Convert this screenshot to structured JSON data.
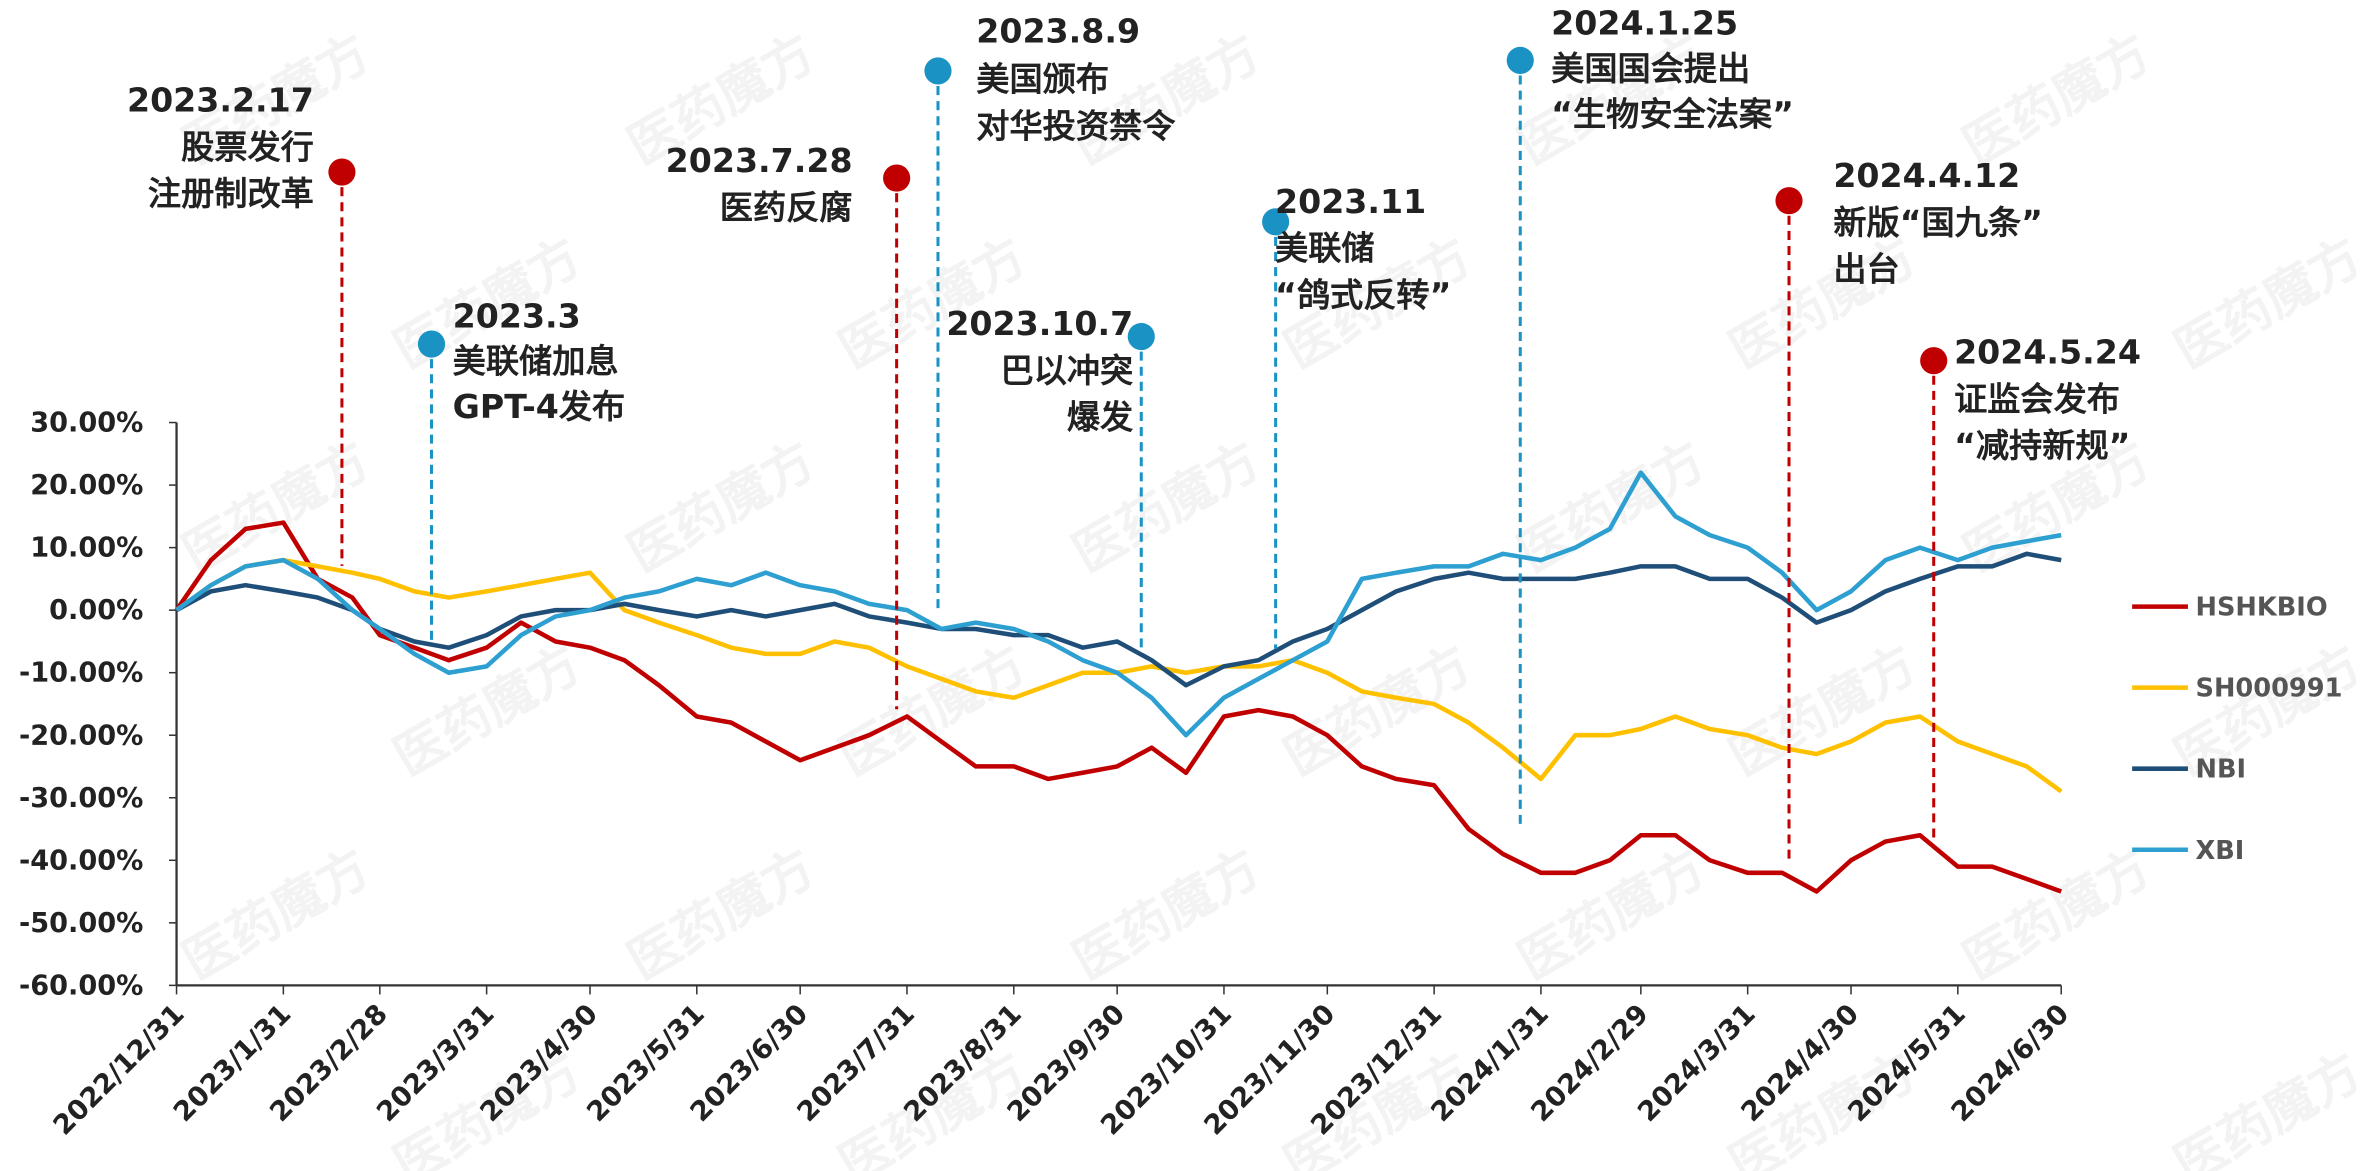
{
  "chart_data": {
    "type": "line",
    "watermark": "医药魔方",
    "x": [
      "2022/12/31",
      "2023/1/10",
      "2023/1/20",
      "2023/1/31",
      "2023/2/10",
      "2023/2/20",
      "2023/2/28",
      "2023/3/10",
      "2023/3/20",
      "2023/3/31",
      "2023/4/10",
      "2023/4/20",
      "2023/4/30",
      "2023/5/10",
      "2023/5/20",
      "2023/5/31",
      "2023/6/10",
      "2023/6/20",
      "2023/6/30",
      "2023/7/10",
      "2023/7/20",
      "2023/7/31",
      "2023/8/10",
      "2023/8/20",
      "2023/8/31",
      "2023/9/10",
      "2023/9/20",
      "2023/9/30",
      "2023/10/10",
      "2023/10/20",
      "2023/10/31",
      "2023/11/10",
      "2023/11/20",
      "2023/11/30",
      "2023/12/10",
      "2023/12/20",
      "2023/12/31",
      "2024/1/10",
      "2024/1/20",
      "2024/1/31",
      "2024/2/10",
      "2024/2/20",
      "2024/2/29",
      "2024/3/10",
      "2024/3/20",
      "2024/3/31",
      "2024/4/10",
      "2024/4/20",
      "2024/4/30",
      "2024/5/10",
      "2024/5/20",
      "2024/5/31",
      "2024/6/10",
      "2024/6/20",
      "2024/6/30"
    ],
    "series": [
      {
        "name": "HSHKBIO",
        "color": "#c00000",
        "values": [
          0,
          8,
          13,
          14,
          5,
          2,
          -4,
          -6,
          -8,
          -6,
          -2,
          -5,
          -6,
          -8,
          -12,
          -17,
          -18,
          -21,
          -24,
          -22,
          -20,
          -17,
          -21,
          -25,
          -25,
          -27,
          -26,
          -25,
          -22,
          -26,
          -17,
          -16,
          -17,
          -20,
          -25,
          -27,
          -28,
          -35,
          -39,
          -42,
          -42,
          -40,
          -36,
          -36,
          -40,
          -42,
          -42,
          -45,
          -40,
          -37,
          -36,
          -41,
          -41,
          -43,
          -45
        ]
      },
      {
        "name": "SH000991",
        "color": "#ffc000",
        "values": [
          0,
          4,
          7,
          8,
          7,
          6,
          5,
          3,
          2,
          3,
          4,
          5,
          6,
          0,
          -2,
          -4,
          -6,
          -7,
          -7,
          -5,
          -6,
          -9,
          -11,
          -13,
          -14,
          -12,
          -10,
          -10,
          -9,
          -10,
          -9,
          -9,
          -8,
          -10,
          -13,
          -14,
          -15,
          -18,
          -22,
          -27,
          -20,
          -20,
          -19,
          -17,
          -19,
          -20,
          -22,
          -23,
          -21,
          -18,
          -17,
          -21,
          -23,
          -25,
          -29
        ]
      },
      {
        "name": "NBI",
        "color": "#1f4e79",
        "values": [
          0,
          3,
          4,
          3,
          2,
          0,
          -3,
          -5,
          -6,
          -4,
          -1,
          0,
          0,
          1,
          0,
          -1,
          0,
          -1,
          0,
          1,
          -1,
          -2,
          -3,
          -3,
          -4,
          -4,
          -6,
          -5,
          -8,
          -12,
          -9,
          -8,
          -5,
          -3,
          0,
          3,
          5,
          6,
          5,
          5,
          5,
          6,
          7,
          7,
          5,
          5,
          2,
          -2,
          0,
          3,
          5,
          7,
          7,
          9,
          8
        ]
      },
      {
        "name": "XBI",
        "color": "#2e9fd1",
        "values": [
          0,
          4,
          7,
          8,
          5,
          0,
          -3,
          -7,
          -10,
          -9,
          -4,
          -1,
          0,
          2,
          3,
          5,
          4,
          6,
          4,
          3,
          1,
          0,
          -3,
          -2,
          -3,
          -5,
          -8,
          -10,
          -14,
          -20,
          -14,
          -11,
          -8,
          -5,
          5,
          6,
          7,
          7,
          9,
          8,
          10,
          13,
          22,
          15,
          12,
          10,
          6,
          0,
          3,
          8,
          10,
          8,
          10,
          11,
          12
        ]
      }
    ],
    "xlim": [
      "2022/12/31",
      "2024/6/30"
    ],
    "xticks": [
      "2022/12/31",
      "2023/1/31",
      "2023/2/28",
      "2023/3/31",
      "2023/4/30",
      "2023/5/31",
      "2023/6/30",
      "2023/7/31",
      "2023/8/31",
      "2023/9/30",
      "2023/10/31",
      "2023/11/30",
      "2023/12/31",
      "2024/1/31",
      "2024/2/29",
      "2024/3/31",
      "2024/4/30",
      "2024/5/31",
      "2024/6/30"
    ],
    "ylim": [
      -60,
      30
    ],
    "yticks": [
      {
        "value": 30,
        "label": "30.00%"
      },
      {
        "value": 20,
        "label": "20.00%"
      },
      {
        "value": 10,
        "label": "10.00%"
      },
      {
        "value": 0,
        "label": "0.00%"
      },
      {
        "value": -10,
        "label": "-10.00%"
      },
      {
        "value": -20,
        "label": "-20.00%"
      },
      {
        "value": -30,
        "label": "-30.00%"
      },
      {
        "value": -40,
        "label": "-40.00%"
      },
      {
        "value": -50,
        "label": "-50.00%"
      },
      {
        "value": -60,
        "label": "-60.00%"
      }
    ],
    "grid": false,
    "legend": "right",
    "annotations": [
      {
        "date": "2023.2.17",
        "lines": [
          "股票发行",
          "注册制改革"
        ],
        "color": "#c00000"
      },
      {
        "date": "2023.3",
        "lines": [
          "美联储加息",
          "GPT-4发布"
        ],
        "color": "#1a93c4"
      },
      {
        "date": "2023.7.28",
        "lines": [
          "医药反腐"
        ],
        "color": "#c00000"
      },
      {
        "date": "2023.8.9",
        "lines": [
          "美国颁布",
          "对华投资禁令"
        ],
        "color": "#1a93c4"
      },
      {
        "date": "2023.10.7",
        "lines": [
          "巴以冲突",
          "爆发"
        ],
        "color": "#1a93c4"
      },
      {
        "date": "2023.11",
        "lines": [
          "美联储",
          "“鸽式反转”"
        ],
        "color": "#1a93c4"
      },
      {
        "date": "2024.1.25",
        "lines": [
          "美国国会提出",
          "“生物安全法案”"
        ],
        "color": "#1a93c4"
      },
      {
        "date": "2024.4.12",
        "lines": [
          "新版“国九条”",
          "出台"
        ],
        "color": "#c00000"
      },
      {
        "date": "2024.5.24",
        "lines": [
          "证监会发布",
          "“减持新规”"
        ],
        "color": "#c00000"
      }
    ]
  }
}
